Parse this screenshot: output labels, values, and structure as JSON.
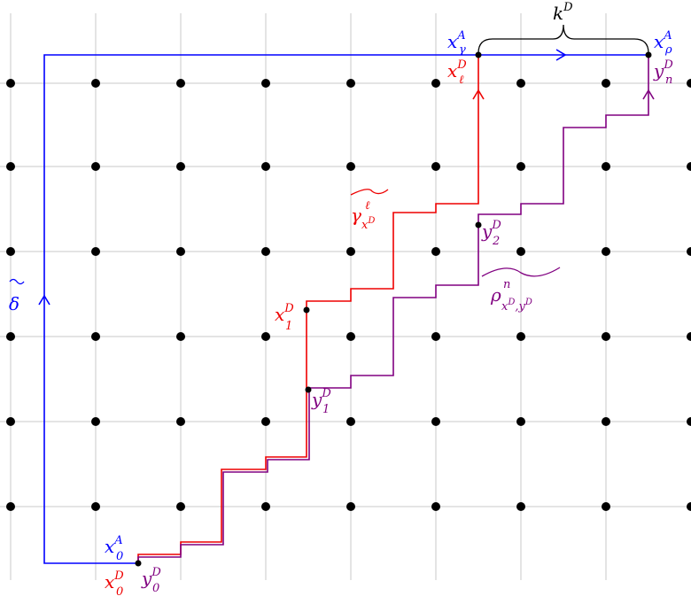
{
  "colors": {
    "grid": "#c8c8c8",
    "dot": "#000000",
    "delta_path": "#0000ff",
    "gamma_path": "#ee0000",
    "rho_path": "#800080",
    "brace": "#000000"
  },
  "labels": {
    "x_gamma_A": {
      "base": "x",
      "sub": "γ",
      "sup": "A"
    },
    "x_rho_A": {
      "base": "x",
      "sub": "ρ",
      "sup": "A"
    },
    "k_D": {
      "base": "k",
      "sup": "D"
    },
    "x_ell_D": {
      "base": "x",
      "sub": "ℓ",
      "sup": "D"
    },
    "y_n_D": {
      "base": "y",
      "sub": "n",
      "sup": "D"
    },
    "gamma_tilde": {
      "base": "γ",
      "sup": "ℓ",
      "sub": "x",
      "subsup": "D"
    },
    "y_2_D": {
      "base": "y",
      "sub": "2",
      "sup": "D"
    },
    "rho_tilde": {
      "base": "ρ",
      "sup": "n",
      "sub": "x",
      "subsup": "D",
      "sub2": ",y",
      "sub2sup": "D"
    },
    "delta_tilde": {
      "base": "δ"
    },
    "x_1_D": {
      "base": "x",
      "sub": "1",
      "sup": "D"
    },
    "y_1_D": {
      "base": "y",
      "sub": "1",
      "sup": "D"
    },
    "x_0_A": {
      "base": "x",
      "sub": "0",
      "sup": "A"
    },
    "x_0_D": {
      "base": "x",
      "sub": "0",
      "sup": "D"
    },
    "y_0_D": {
      "base": "y",
      "sub": "0",
      "sup": "D"
    }
  },
  "icons": {
    "path_arrow": "open-chevron-arrow",
    "tilde": "wide-tilde-accent",
    "brace": "horizontal-curly-brace"
  }
}
